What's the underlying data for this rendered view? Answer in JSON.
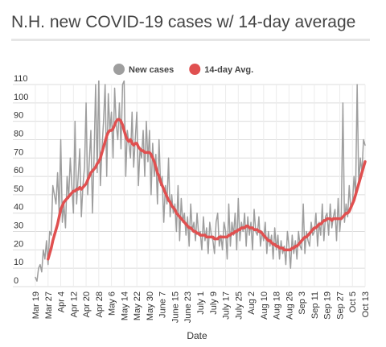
{
  "chart_data": {
    "type": "line",
    "title": "N.H. new COVID-19 cases w/ 14-day average",
    "x_label": "Date",
    "categories": [
      "Mar 19",
      null,
      null,
      null,
      null,
      null,
      null,
      null,
      "Mar 27",
      null,
      null,
      null,
      null,
      null,
      null,
      null,
      "Apr 4",
      null,
      null,
      null,
      null,
      null,
      null,
      null,
      "Apr 12",
      null,
      null,
      null,
      null,
      null,
      null,
      null,
      "Apr 20",
      null,
      null,
      null,
      null,
      null,
      null,
      null,
      "Apr 28",
      null,
      null,
      null,
      null,
      null,
      null,
      null,
      "May 6",
      null,
      null,
      null,
      null,
      null,
      null,
      null,
      "May 14",
      null,
      null,
      null,
      null,
      null,
      null,
      null,
      "May 22",
      null,
      null,
      null,
      null,
      null,
      null,
      null,
      "May 30",
      null,
      null,
      null,
      null,
      null,
      null,
      null,
      "June 7",
      null,
      null,
      null,
      null,
      null,
      null,
      null,
      "June 15",
      null,
      null,
      null,
      null,
      null,
      null,
      null,
      "June 23",
      null,
      null,
      null,
      null,
      null,
      null,
      null,
      "July 1",
      null,
      null,
      null,
      null,
      null,
      null,
      null,
      "July 9",
      null,
      null,
      null,
      null,
      null,
      null,
      null,
      "July 17",
      null,
      null,
      null,
      null,
      null,
      null,
      null,
      "July 25",
      null,
      null,
      null,
      null,
      null,
      null,
      null,
      "Aug 2",
      null,
      null,
      null,
      null,
      null,
      null,
      null,
      "Aug 10",
      null,
      null,
      null,
      null,
      null,
      null,
      null,
      "Aug 18",
      null,
      null,
      null,
      null,
      null,
      null,
      null,
      "Aug 26",
      null,
      null,
      null,
      null,
      null,
      null,
      null,
      "Sep 3",
      null,
      null,
      null,
      null,
      null,
      null,
      null,
      "Sep 11",
      null,
      null,
      null,
      null,
      null,
      null,
      null,
      "Sep 19",
      null,
      null,
      null,
      null,
      null,
      null,
      null,
      "Sep 27",
      null,
      null,
      null,
      null,
      null,
      null,
      null,
      "Oct 5",
      null,
      null,
      null,
      null,
      null,
      null,
      null,
      "Oct 13"
    ],
    "series": [
      {
        "name": "New cases",
        "color": "#9e9e9e",
        "width": 1.5,
        "values": [
          5,
          3,
          10,
          12,
          8,
          20,
          15,
          25,
          12,
          30,
          28,
          55,
          50,
          45,
          62,
          40,
          80,
          35,
          45,
          32,
          60,
          48,
          70,
          55,
          40,
          90,
          45,
          60,
          75,
          38,
          55,
          65,
          100,
          50,
          68,
          85,
          40,
          70,
          110,
          62,
          115,
          55,
          75,
          90,
          110,
          60,
          105,
          85,
          95,
          70,
          108,
          88,
          80,
          100,
          75,
          110,
          112,
          60,
          85,
          78,
          70,
          95,
          65,
          80,
          95,
          55,
          75,
          70,
          85,
          60,
          90,
          68,
          85,
          50,
          78,
          60,
          72,
          45,
          80,
          55,
          60,
          35,
          55,
          45,
          70,
          38,
          50,
          40,
          45,
          30,
          55,
          25,
          48,
          35,
          40,
          28,
          38,
          22,
          45,
          30,
          35,
          25,
          40,
          28,
          30,
          20,
          38,
          25,
          32,
          18,
          35,
          28,
          25,
          18,
          35,
          40,
          22,
          28,
          20,
          35,
          30,
          15,
          45,
          22,
          35,
          28,
          40,
          20,
          48,
          25,
          35,
          30,
          40,
          22,
          38,
          28,
          35,
          20,
          42,
          30,
          28,
          38,
          22,
          30,
          25,
          35,
          18,
          30,
          22,
          28,
          15,
          32,
          20,
          28,
          15,
          25,
          18,
          22,
          12,
          30,
          22,
          10,
          28,
          18,
          25,
          15,
          30,
          22,
          20,
          45,
          18,
          30,
          25,
          22,
          35,
          28,
          30,
          40,
          22,
          35,
          28,
          45,
          25,
          38,
          40,
          28,
          45,
          32,
          38,
          42,
          25,
          48,
          30,
          40,
          100,
          35,
          45,
          38,
          55,
          42,
          45,
          60,
          50,
          110,
          55,
          70,
          62,
          80,
          77
        ]
      },
      {
        "name": "14-day Avg.",
        "color": "#e05050",
        "width": 3.5,
        "values": [
          null,
          null,
          null,
          null,
          null,
          null,
          null,
          null,
          15,
          18,
          21,
          25,
          28,
          31,
          34,
          38,
          42,
          44,
          46,
          47,
          48,
          49,
          50,
          51,
          52,
          52,
          53,
          53,
          54,
          53,
          54,
          55,
          56,
          58,
          60,
          62,
          63,
          64,
          65,
          67,
          68,
          70,
          73,
          76,
          79,
          82,
          84,
          85,
          85,
          86,
          88,
          90,
          91,
          91,
          90,
          88,
          85,
          82,
          80,
          79,
          80,
          78,
          77,
          78,
          78,
          76,
          75,
          74,
          74,
          73,
          73,
          73,
          73,
          72,
          70,
          68,
          65,
          62,
          60,
          57,
          55,
          53,
          51,
          49,
          47,
          46,
          44,
          43,
          42,
          40,
          39,
          38,
          37,
          36,
          35,
          34,
          33,
          32,
          32,
          31,
          30,
          30,
          29,
          29,
          28,
          28,
          28,
          28,
          27,
          27,
          27,
          27,
          27,
          26,
          26,
          26,
          27,
          27,
          27,
          27,
          27,
          27,
          28,
          28,
          29,
          29,
          30,
          30,
          31,
          31,
          32,
          32,
          32,
          33,
          33,
          32,
          32,
          32,
          31,
          31,
          31,
          30,
          30,
          29,
          28,
          27,
          26,
          25,
          25,
          24,
          23,
          23,
          22,
          22,
          21,
          21,
          21,
          20,
          20,
          20,
          20,
          20,
          21,
          21,
          22,
          22,
          23,
          24,
          25,
          26,
          27,
          27,
          28,
          29,
          30,
          31,
          32,
          32,
          33,
          34,
          34,
          35,
          36,
          36,
          37,
          37,
          37,
          36,
          37,
          37,
          37,
          37,
          37,
          37,
          38,
          39,
          40,
          40,
          41,
          43,
          45,
          47,
          50,
          53,
          56,
          59,
          62,
          65,
          68
        ]
      }
    ],
    "ylim": [
      0,
      110
    ],
    "yticks": [
      0,
      10,
      20,
      30,
      40,
      50,
      60,
      70,
      80,
      90,
      100,
      110
    ],
    "grid": true
  }
}
